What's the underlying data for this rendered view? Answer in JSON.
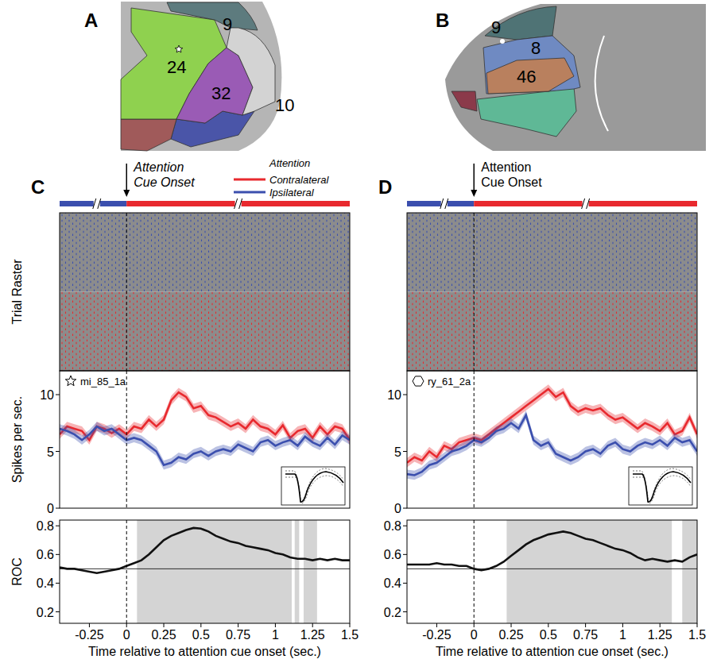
{
  "diagrams": [
    {
      "panel": "A",
      "regions": [
        {
          "label": "24",
          "color": "#8fd14f"
        },
        {
          "label": "9",
          "color": "#5d7b7e"
        },
        {
          "label": "32",
          "color": "#9a5bb5"
        },
        {
          "label": "10",
          "color": "#d3d3d3"
        }
      ]
    },
    {
      "panel": "B",
      "regions": [
        {
          "label": "9",
          "color": "#4f7375"
        },
        {
          "label": "8",
          "color": "#6f8ac2"
        },
        {
          "label": "46",
          "color": "#b9805e"
        }
      ]
    }
  ],
  "chart_data": [
    {
      "type": "raster",
      "panel": "C",
      "y_label": "Trial Raster",
      "xlim": [
        -0.45,
        1.5
      ],
      "annotation": {
        "text": "Attention Cue Onset",
        "x": 0
      },
      "cue_bar_breaks": [
        -0.2,
        0.75
      ],
      "legend": "top-right",
      "legend_title": "Attention",
      "series": [
        {
          "name": "Contralateral",
          "color": "#e8292e"
        },
        {
          "name": "Ipsilateral",
          "color": "#3b4fae"
        }
      ]
    },
    {
      "type": "line",
      "label": "mi_85_1a",
      "marker": "star",
      "y_label": "Spikes per sec.",
      "x": [
        -0.45,
        -0.4,
        -0.35,
        -0.3,
        -0.25,
        -0.2,
        -0.15,
        -0.1,
        -0.05,
        0,
        0.05,
        0.1,
        0.15,
        0.2,
        0.25,
        0.3,
        0.35,
        0.4,
        0.45,
        0.5,
        0.55,
        0.6,
        0.65,
        0.7,
        0.75,
        0.8,
        0.85,
        0.9,
        0.95,
        1,
        1.05,
        1.1,
        1.15,
        1.2,
        1.25,
        1.3,
        1.35,
        1.4,
        1.45,
        1.5
      ],
      "xlim": [
        -0.45,
        1.5
      ],
      "ylim": [
        0,
        12.1
      ],
      "yticks": [
        0,
        5,
        10
      ],
      "series": [
        {
          "name": "Contralateral",
          "color": "#e8292e",
          "error": 0.4,
          "values": [
            6.5,
            7.2,
            7.0,
            6.8,
            6.0,
            7.2,
            7.0,
            6.6,
            7.0,
            6.5,
            7.2,
            7.0,
            7.8,
            7.2,
            7.8,
            9.5,
            10.2,
            9.8,
            8.8,
            9.0,
            8.2,
            8.0,
            7.6,
            7.2,
            7.5,
            7.0,
            7.8,
            7.2,
            7.0,
            6.5,
            7.3,
            6.2,
            6.8,
            7.0,
            6.2,
            7.2,
            6.5,
            7.2,
            7.0,
            6.0
          ]
        },
        {
          "name": "Ipsilateral",
          "color": "#3b4fae",
          "error": 0.4,
          "values": [
            7.0,
            6.8,
            6.5,
            6.0,
            6.5,
            7.2,
            6.8,
            7.0,
            6.5,
            6.0,
            6.2,
            6.0,
            5.5,
            5.0,
            3.8,
            4.0,
            4.5,
            4.3,
            4.8,
            5.0,
            4.6,
            5.0,
            5.2,
            5.0,
            5.6,
            5.3,
            5.0,
            5.8,
            6.0,
            5.5,
            5.8,
            6.0,
            5.5,
            6.3,
            5.8,
            5.5,
            6.2,
            5.6,
            6.4,
            6.0
          ]
        }
      ]
    },
    {
      "type": "line",
      "y_label": "ROC",
      "x_label": "Time relative to attention cue onset (sec.)",
      "x": [
        -0.45,
        -0.4,
        -0.35,
        -0.3,
        -0.25,
        -0.2,
        -0.15,
        -0.1,
        -0.05,
        0,
        0.05,
        0.1,
        0.15,
        0.2,
        0.25,
        0.3,
        0.35,
        0.4,
        0.45,
        0.5,
        0.55,
        0.6,
        0.65,
        0.7,
        0.75,
        0.8,
        0.85,
        0.9,
        0.95,
        1,
        1.05,
        1.1,
        1.15,
        1.2,
        1.25,
        1.3,
        1.35,
        1.4,
        1.45,
        1.5
      ],
      "xlim": [
        -0.45,
        1.5
      ],
      "xticks": [
        -0.25,
        0,
        0.25,
        0.5,
        0.75,
        1,
        1.25,
        1.5
      ],
      "ylim": [
        0.12,
        0.84
      ],
      "yticks": [
        0.2,
        0.4,
        0.6,
        0.8
      ],
      "reference_line": 0.5,
      "shaded_ranges": [
        [
          0.07,
          1.11
        ],
        [
          1.13,
          1.16
        ],
        [
          1.19,
          1.28
        ]
      ],
      "series": [
        {
          "color": "#111111",
          "values": [
            0.51,
            0.5,
            0.5,
            0.49,
            0.48,
            0.47,
            0.48,
            0.49,
            0.5,
            0.52,
            0.54,
            0.56,
            0.6,
            0.65,
            0.7,
            0.73,
            0.75,
            0.77,
            0.785,
            0.78,
            0.76,
            0.73,
            0.71,
            0.69,
            0.68,
            0.66,
            0.65,
            0.64,
            0.63,
            0.61,
            0.6,
            0.58,
            0.57,
            0.57,
            0.56,
            0.57,
            0.56,
            0.57,
            0.56,
            0.56
          ]
        }
      ]
    },
    {
      "type": "raster",
      "panel": "D",
      "xlim": [
        -0.45,
        1.5
      ],
      "annotation": {
        "text": "Attention Cue Onset",
        "x": 0
      },
      "cue_bar_breaks": [
        -0.2,
        0.75
      ],
      "colors": [
        "#e8292e",
        "#3b4fae"
      ]
    },
    {
      "type": "line",
      "label": "ry_61_2a",
      "marker": "hexagon",
      "x": [
        -0.45,
        -0.4,
        -0.35,
        -0.3,
        -0.25,
        -0.2,
        -0.15,
        -0.1,
        -0.05,
        0,
        0.05,
        0.1,
        0.15,
        0.2,
        0.25,
        0.3,
        0.35,
        0.4,
        0.45,
        0.5,
        0.55,
        0.6,
        0.65,
        0.7,
        0.75,
        0.8,
        0.85,
        0.9,
        0.95,
        1,
        1.05,
        1.1,
        1.15,
        1.2,
        1.25,
        1.3,
        1.35,
        1.4,
        1.45,
        1.5
      ],
      "xlim": [
        -0.45,
        1.5
      ],
      "ylim": [
        0,
        12.1
      ],
      "yticks": [
        0,
        5,
        10
      ],
      "series": [
        {
          "color": "#e8292e",
          "error": 0.4,
          "values": [
            4.0,
            4.5,
            4.2,
            5.0,
            4.5,
            5.5,
            5.2,
            5.8,
            6.0,
            6.2,
            6.0,
            6.5,
            7.0,
            7.5,
            8.0,
            8.5,
            9.0,
            9.5,
            10.0,
            10.5,
            9.8,
            10.2,
            9.0,
            8.5,
            8.8,
            8.6,
            8.8,
            8.2,
            7.8,
            8.0,
            7.5,
            7.0,
            7.5,
            7.2,
            6.8,
            7.5,
            6.5,
            6.8,
            8.0,
            6.5
          ]
        },
        {
          "color": "#3b4fae",
          "error": 0.4,
          "values": [
            3.0,
            2.9,
            3.2,
            3.8,
            4.0,
            4.5,
            5.0,
            5.2,
            5.5,
            6.0,
            5.8,
            6.2,
            6.8,
            7.0,
            7.5,
            7.0,
            8.2,
            6.0,
            5.5,
            5.8,
            4.8,
            4.5,
            4.2,
            4.5,
            5.0,
            5.2,
            4.8,
            5.5,
            5.8,
            5.2,
            5.0,
            5.5,
            5.8,
            5.6,
            6.0,
            5.5,
            6.2,
            5.8,
            6.0,
            5.0
          ]
        }
      ]
    },
    {
      "type": "line",
      "x_label": "Time relative to attention cue onset (sec.)",
      "x": [
        -0.45,
        -0.4,
        -0.35,
        -0.3,
        -0.25,
        -0.2,
        -0.15,
        -0.1,
        -0.05,
        0,
        0.05,
        0.1,
        0.15,
        0.2,
        0.25,
        0.3,
        0.35,
        0.4,
        0.45,
        0.5,
        0.55,
        0.6,
        0.65,
        0.7,
        0.75,
        0.8,
        0.85,
        0.9,
        0.95,
        1,
        1.05,
        1.1,
        1.15,
        1.2,
        1.25,
        1.3,
        1.35,
        1.4,
        1.45,
        1.5
      ],
      "xlim": [
        -0.45,
        1.5
      ],
      "xticks": [
        -0.25,
        0,
        0.25,
        0.5,
        0.75,
        1,
        1.25,
        1.5
      ],
      "ylim": [
        0.12,
        0.84
      ],
      "yticks": [
        0.2,
        0.4,
        0.6,
        0.8
      ],
      "reference_line": 0.5,
      "shaded_ranges": [
        [
          0.22,
          1.33
        ],
        [
          1.4,
          1.5
        ]
      ],
      "series": [
        {
          "color": "#111111",
          "values": [
            0.53,
            0.53,
            0.53,
            0.53,
            0.54,
            0.53,
            0.53,
            0.52,
            0.52,
            0.5,
            0.49,
            0.5,
            0.52,
            0.55,
            0.59,
            0.63,
            0.67,
            0.7,
            0.72,
            0.74,
            0.75,
            0.76,
            0.75,
            0.73,
            0.71,
            0.7,
            0.68,
            0.66,
            0.64,
            0.63,
            0.61,
            0.58,
            0.56,
            0.57,
            0.56,
            0.55,
            0.56,
            0.55,
            0.58,
            0.6
          ]
        }
      ]
    }
  ]
}
